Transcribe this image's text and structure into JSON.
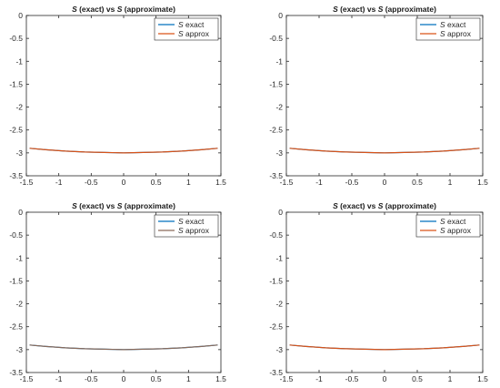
{
  "chart_data": [
    {
      "type": "line",
      "title": {
        "part1": "S",
        "part2": " (exact) vs  ",
        "part3": "S",
        "part4": " (approximate)"
      },
      "xlabel": "",
      "ylabel": "",
      "xlim": [
        -1.5,
        1.5
      ],
      "ylim": [
        -3.5,
        0
      ],
      "xticks": [
        -1.5,
        -1,
        -0.5,
        0,
        0.5,
        1,
        1.5
      ],
      "xtick_labels": [
        "-1.5",
        "-1",
        "-0.5",
        "0",
        "0.5",
        "1",
        "1.5"
      ],
      "yticks": [
        0,
        -0.5,
        -1,
        -1.5,
        -2,
        -2.5,
        -3,
        -3.5
      ],
      "ytick_labels": [
        "0",
        "-0.5",
        "-1",
        "-1.5",
        "-2",
        "-2.5",
        "-3",
        "-3.5"
      ],
      "grid": false,
      "legend_position": "top-right",
      "series": [
        {
          "name": "S exact",
          "legend_italic": "S",
          "legend_rest": " exact",
          "color": "#0072BD",
          "x": [
            -1.45,
            -1.2,
            -0.9,
            -0.6,
            -0.3,
            0,
            0.3,
            0.6,
            0.9,
            1.2,
            1.45
          ],
          "y": [
            -2.9,
            -2.93,
            -2.96,
            -2.98,
            -2.99,
            -3.0,
            -2.99,
            -2.98,
            -2.96,
            -2.93,
            -2.9
          ]
        },
        {
          "name": "S approx",
          "legend_italic": "S",
          "legend_rest": " approx",
          "color": "#D95319",
          "x": [
            -1.45,
            -1.2,
            -0.9,
            -0.6,
            -0.3,
            0,
            0.3,
            0.6,
            0.9,
            1.2,
            1.45
          ],
          "y": [
            -2.9,
            -2.93,
            -2.96,
            -2.98,
            -2.99,
            -3.0,
            -2.99,
            -2.98,
            -2.96,
            -2.93,
            -2.9
          ]
        }
      ]
    },
    {
      "type": "line",
      "title": {
        "part1": "S",
        "part2": " (exact) vs  ",
        "part3": "S",
        "part4": " (approximate)"
      },
      "xlabel": "",
      "ylabel": "",
      "xlim": [
        -1.5,
        1.5
      ],
      "ylim": [
        -3.5,
        0
      ],
      "xticks": [
        -1.5,
        -1,
        -0.5,
        0,
        0.5,
        1,
        1.5
      ],
      "xtick_labels": [
        "-1.5",
        "-1",
        "-0.5",
        "0",
        "0.5",
        "1",
        "1.5"
      ],
      "yticks": [
        0,
        -0.5,
        -1,
        -1.5,
        -2,
        -2.5,
        -3,
        -3.5
      ],
      "ytick_labels": [
        "0",
        "-0.5",
        "-1",
        "-1.5",
        "-2",
        "-2.5",
        "-3",
        "-3.5"
      ],
      "grid": false,
      "legend_position": "top-right",
      "series": [
        {
          "name": "S exact",
          "legend_italic": "S",
          "legend_rest": " exact",
          "color": "#0072BD",
          "x": [
            -1.45,
            -1.2,
            -0.9,
            -0.6,
            -0.3,
            0,
            0.3,
            0.6,
            0.9,
            1.2,
            1.45
          ],
          "y": [
            -2.9,
            -2.93,
            -2.96,
            -2.98,
            -2.99,
            -3.0,
            -2.99,
            -2.98,
            -2.96,
            -2.93,
            -2.9
          ]
        },
        {
          "name": "S approx",
          "legend_italic": "S",
          "legend_rest": " approx",
          "color": "#D95319",
          "x": [
            -1.45,
            -1.2,
            -0.9,
            -0.6,
            -0.3,
            0,
            0.3,
            0.6,
            0.9,
            1.2,
            1.45
          ],
          "y": [
            -2.9,
            -2.93,
            -2.96,
            -2.98,
            -2.99,
            -3.0,
            -2.99,
            -2.98,
            -2.96,
            -2.93,
            -2.9
          ]
        }
      ]
    },
    {
      "type": "line",
      "title": {
        "part1": "S",
        "part2": " (exact) vs  ",
        "part3": "S",
        "part4": " (approximate)"
      },
      "xlabel": "",
      "ylabel": "",
      "xlim": [
        -1.5,
        1.5
      ],
      "ylim": [
        -3.5,
        0
      ],
      "xticks": [
        -1.5,
        -1,
        -0.5,
        0,
        0.5,
        1,
        1.5
      ],
      "xtick_labels": [
        "-1.5",
        "-1",
        "-0.5",
        "0",
        "0.5",
        "1",
        "1.5"
      ],
      "yticks": [
        0,
        -0.5,
        -1,
        -1.5,
        -2,
        -2.5,
        -3,
        -3.5
      ],
      "ytick_labels": [
        "0",
        "-0.5",
        "-1",
        "-1.5",
        "-2",
        "-2.5",
        "-3",
        "-3.5"
      ],
      "grid": false,
      "legend_position": "top-right",
      "series": [
        {
          "name": "S exact",
          "legend_italic": "S",
          "legend_rest": " exact",
          "color": "#0072BD",
          "x": [
            -1.45,
            -1.2,
            -0.9,
            -0.6,
            -0.3,
            0,
            0.3,
            0.6,
            0.9,
            1.2,
            1.45
          ],
          "y": [
            -2.9,
            -2.93,
            -2.96,
            -2.98,
            -2.99,
            -3.0,
            -2.99,
            -2.98,
            -2.96,
            -2.93,
            -2.9
          ]
        },
        {
          "name": "S approx",
          "legend_italic": "S",
          "legend_rest": " approx",
          "color": "#8A6A5A",
          "x": [
            -1.45,
            -1.2,
            -0.9,
            -0.6,
            -0.3,
            0,
            0.3,
            0.6,
            0.9,
            1.2,
            1.45
          ],
          "y": [
            -2.9,
            -2.93,
            -2.96,
            -2.98,
            -2.99,
            -3.0,
            -2.99,
            -2.98,
            -2.96,
            -2.93,
            -2.9
          ]
        }
      ]
    },
    {
      "type": "line",
      "title": {
        "part1": "S",
        "part2": " (exact) vs  ",
        "part3": "S",
        "part4": " (approximate)"
      },
      "xlabel": "",
      "ylabel": "",
      "xlim": [
        -1.5,
        1.5
      ],
      "ylim": [
        -3.5,
        0
      ],
      "xticks": [
        -1.5,
        -1,
        -0.5,
        0,
        0.5,
        1,
        1.5
      ],
      "xtick_labels": [
        "-1.5",
        "-1",
        "-0.5",
        "0",
        "0.5",
        "1",
        "1.5"
      ],
      "yticks": [
        0,
        -0.5,
        -1,
        -1.5,
        -2,
        -2.5,
        -3,
        -3.5
      ],
      "ytick_labels": [
        "0",
        "-0.5",
        "-1",
        "-1.5",
        "-2",
        "-2.5",
        "-3",
        "-3.5"
      ],
      "grid": false,
      "legend_position": "top-right",
      "series": [
        {
          "name": "S exact",
          "legend_italic": "S",
          "legend_rest": " exact",
          "color": "#0072BD",
          "x": [
            -1.45,
            -1.2,
            -0.9,
            -0.6,
            -0.3,
            0,
            0.3,
            0.6,
            0.9,
            1.2,
            1.45
          ],
          "y": [
            -2.9,
            -2.93,
            -2.96,
            -2.98,
            -2.99,
            -3.0,
            -2.99,
            -2.98,
            -2.96,
            -2.93,
            -2.9
          ]
        },
        {
          "name": "S approx",
          "legend_italic": "S",
          "legend_rest": " approx",
          "color": "#D95319",
          "x": [
            -1.45,
            -1.2,
            -0.9,
            -0.6,
            -0.3,
            0,
            0.3,
            0.6,
            0.9,
            1.2,
            1.45
          ],
          "y": [
            -2.9,
            -2.93,
            -2.96,
            -2.98,
            -2.99,
            -3.0,
            -2.99,
            -2.98,
            -2.96,
            -2.93,
            -2.9
          ]
        }
      ]
    }
  ]
}
